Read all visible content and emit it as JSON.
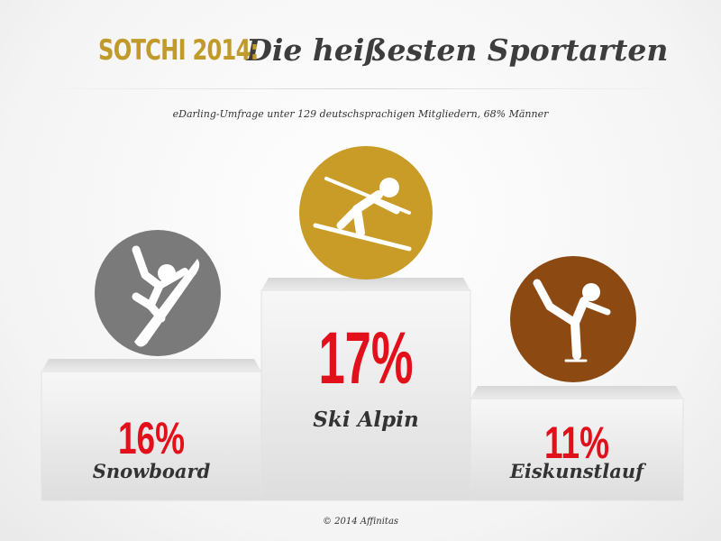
{
  "title": {
    "prefix": "SOTCHI 2014:",
    "main": "Die heißesten Sportarten"
  },
  "subtitle": "eDarling-Umfrage unter 129 deutschsprachigen Mitgliedern, 68% Männer",
  "footer": "© 2014 Affinitas",
  "colors": {
    "title_prefix": "#c09a2a",
    "title_main": "#3d3d3d",
    "percent": "#e2101b",
    "label": "#333333",
    "silver": "#7a7a7a",
    "gold": "#c99c28",
    "bronze": "#8c4a12"
  },
  "chart_data": {
    "type": "bar",
    "categories": [
      "Snowboard",
      "Ski Alpin",
      "Eiskunstlauf"
    ],
    "values": [
      16,
      17,
      11
    ],
    "value_labels": [
      "16%",
      "17%",
      "11%"
    ],
    "unit": "%",
    "ranks": [
      2,
      1,
      3
    ],
    "medals": [
      "silver",
      "gold",
      "bronze"
    ],
    "icons": [
      "snowboarder-icon",
      "skier-icon",
      "figure-skater-icon"
    ]
  }
}
